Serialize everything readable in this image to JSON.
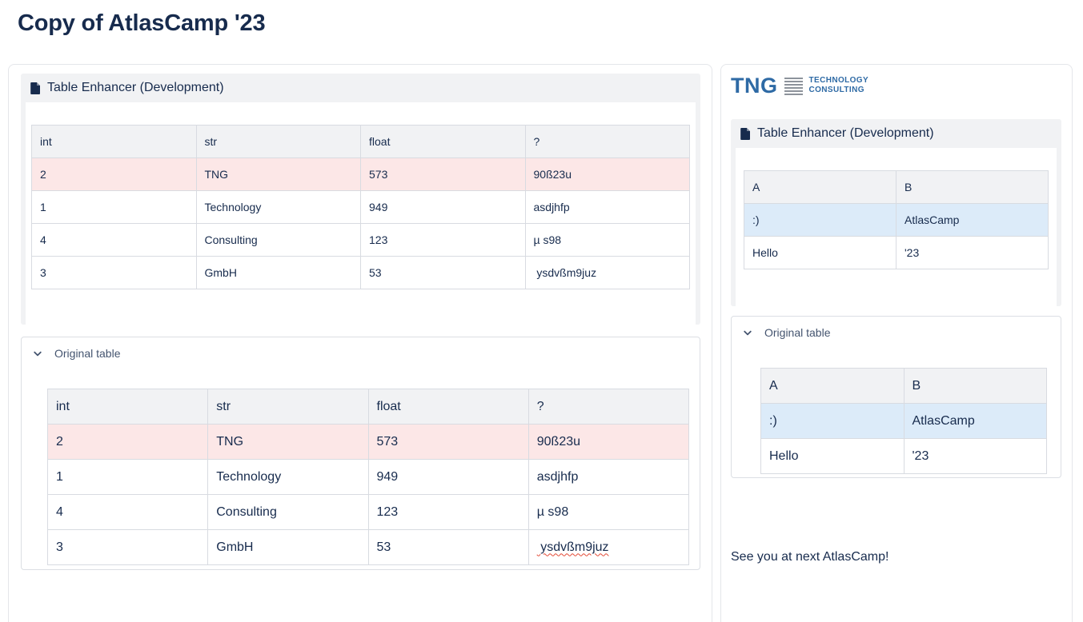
{
  "page": {
    "title": "Copy of AtlasCamp '23"
  },
  "macro": {
    "title": "Table Enhancer (Development)",
    "expand_label": "Original table",
    "document_icon": "document-icon",
    "chevron_icon": "chevron-down-icon"
  },
  "logo": {
    "name": "TNG Technology Consulting logo",
    "tng": "TNG",
    "line1": "TECHNOLOGY",
    "line2": "CONSULTING"
  },
  "left": {
    "enhanced_table": {
      "columns": [
        "int",
        "str",
        "float",
        "?"
      ],
      "rows": [
        {
          "cells": [
            "2",
            "TNG",
            "573",
            "90ß23u"
          ],
          "highlight": "pink"
        },
        {
          "cells": [
            "1",
            "Technology",
            "949",
            "asdjhfp"
          ],
          "highlight": ""
        },
        {
          "cells": [
            "4",
            "Consulting",
            "123",
            "µ s98"
          ],
          "highlight": ""
        },
        {
          "cells": [
            "3",
            "GmbH",
            "53",
            " ysdvßm9juz"
          ],
          "highlight": ""
        }
      ]
    },
    "original_table": {
      "columns": [
        "int",
        "str",
        "float",
        "?"
      ],
      "rows": [
        {
          "cells": [
            "2",
            "TNG",
            "573",
            "90ß23u"
          ],
          "highlight": "pink"
        },
        {
          "cells": [
            "1",
            "Technology",
            "949",
            "asdjhfp"
          ],
          "highlight": ""
        },
        {
          "cells": [
            "4",
            "Consulting",
            "123",
            "µ s98"
          ],
          "highlight": ""
        },
        {
          "cells": [
            "3",
            "GmbH",
            "53",
            " ysdvßm9juz"
          ],
          "highlight": "",
          "squiggle_cell": 3
        }
      ]
    }
  },
  "right": {
    "enhanced_table": {
      "columns": [
        "A",
        "B"
      ],
      "rows": [
        {
          "cells": [
            ":)",
            "AtlasCamp"
          ],
          "highlight": "blue"
        },
        {
          "cells": [
            "Hello",
            "'23"
          ],
          "highlight": ""
        }
      ]
    },
    "original_table": {
      "columns": [
        "A",
        "B"
      ],
      "rows": [
        {
          "cells": [
            ":)",
            "AtlasCamp"
          ],
          "highlight": "blue"
        },
        {
          "cells": [
            "Hello",
            "'23"
          ],
          "highlight": ""
        }
      ]
    },
    "closing_text": "See you at next AtlasCamp!"
  },
  "colors": {
    "text": "#172b4d",
    "expand_label": "#44546f",
    "macro_bg": "#f1f2f4",
    "table_header_bg": "#f1f2f4",
    "table_border": "#d8dbe1",
    "row_highlight_pink": "#fce7e7",
    "row_highlight_blue": "#dcebf9",
    "card_border": "#e4e6ea",
    "logo_blue": "#2e6aa5",
    "logo_gray": "#8d939b",
    "spellcheck_red": "#e34935"
  }
}
